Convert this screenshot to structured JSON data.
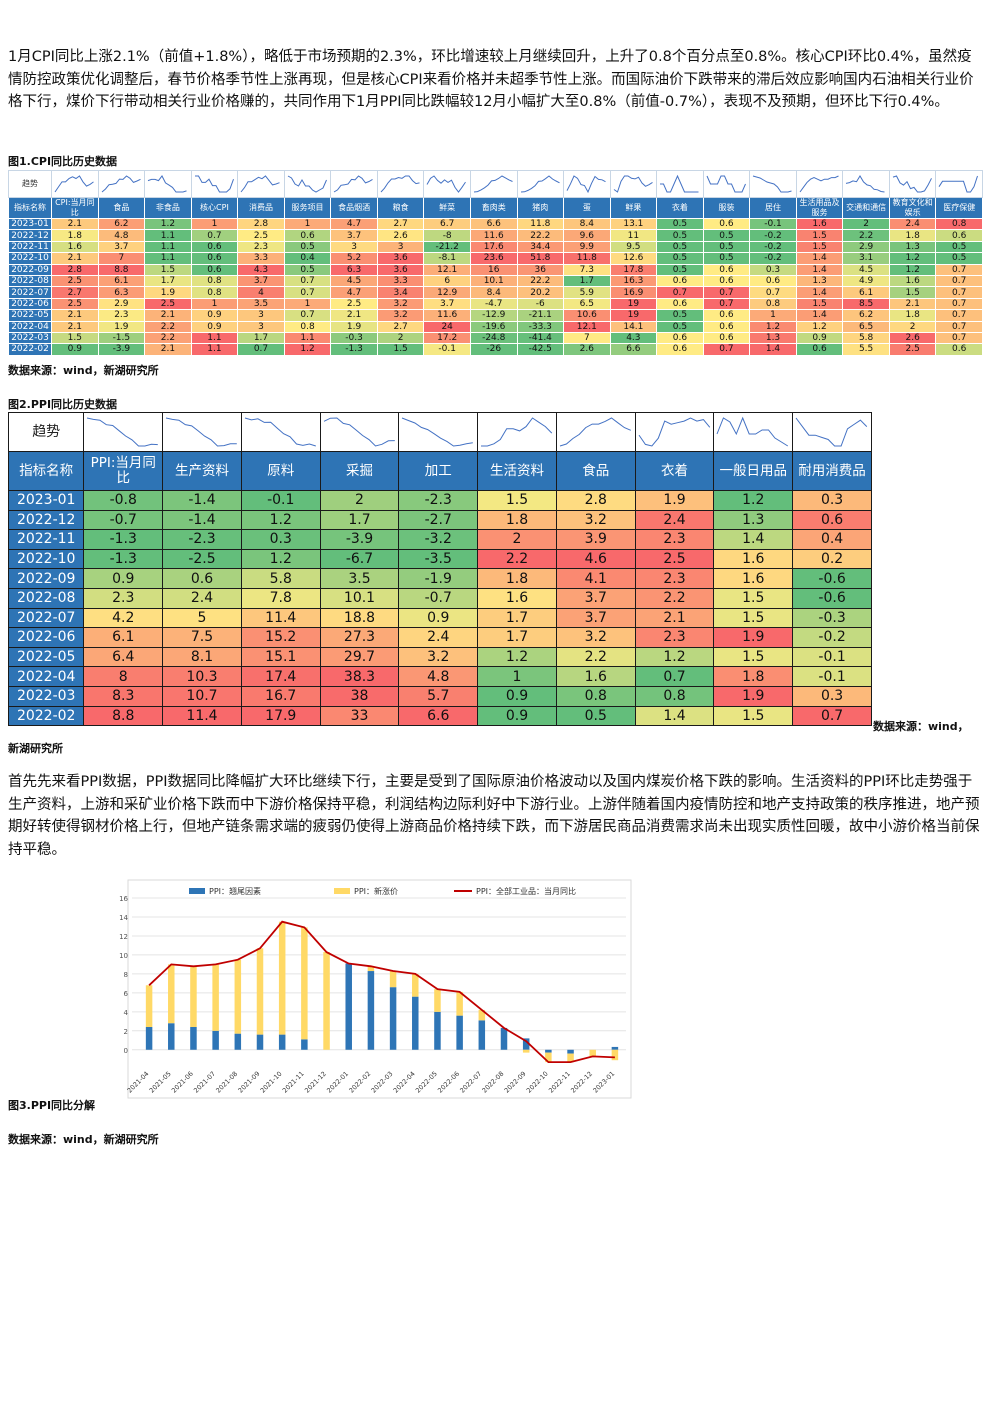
{
  "paragraphs": {
    "p1": "1月CPI同比上涨2.1%（前值+1.8%），略低于市场预期的2.3%，环比增速较上月继续回升，上升了0.8个百分点至0.8%。核心CPI环比0.4%，虽然疫情防控政策优化调整后，春节价格季节性上涨再现，但是核心CPI来看价格并未超季节性上涨。而国际油价下跌带来的滞后效应影响国内石油相关行业价格下行，煤价下行带动相关行业价格赚的，共同作用下1月PPI同比跌幅较12月小幅扩大至0.8%（前值-0.7%），表现不及预期，但环比下行0.4%。",
    "p2": "首先先来看PPI数据，PPI数据同比降幅扩大环比继续下行，主要是受到了国际原油价格波动以及国内煤炭价格下跌的影响。生活资料的PPI环比走势强于生产资料，上游和采矿业价格下跌而中下游价格保持平稳，利润结构边际利好中下游行业。上游伴随着国内疫情防控和地产支持政策的秩序推进，地产预期好转使得钢材价格上行，但地产链条需求端的疲弱仍使得上游商品价格持续下跌，而下游居民商品消费需求尚未出现实质性回暖，故中小游价格当前保持平稳。"
  },
  "captions": {
    "fig1": "图1.CPI同比历史数据",
    "fig2": "图2.PPI同比历史数据",
    "fig3": "图3.PPI同比分解",
    "source1": "数据来源：wind，新湖研究所",
    "source2a": "数据来源：wind，",
    "source2b": "新湖研究所",
    "source3": "数据来源：wind，新湖研究所"
  },
  "cpi_table": {
    "trend_label": "趋势",
    "corner": "指标名称",
    "headers": [
      "CPI:当月同比",
      "食品",
      "非食品",
      "核心CPI",
      "消费品",
      "服务项目",
      "食品烟酒",
      "粮食",
      "鲜菜",
      "畜肉类",
      "猪肉",
      "蛋",
      "鲜果",
      "衣着",
      "服装",
      "居住",
      "生活用品及服务",
      "交通和通信",
      "教育文化和娱乐",
      "医疗保健"
    ],
    "dates": [
      "2023-01",
      "2022-12",
      "2022-11",
      "2022-10",
      "2022-09",
      "2022-08",
      "2022-07",
      "2022-06",
      "2022-05",
      "2022-04",
      "2022-03",
      "2022-02"
    ],
    "rows": [
      [
        "2.1",
        "6.2",
        "1.2",
        "1",
        "2.8",
        "1",
        "4.7",
        "2.7",
        "6.7",
        "6.6",
        "11.8",
        "8.4",
        "13.1",
        "0.5",
        "0.6",
        "-0.1",
        "1.6",
        "2",
        "2.4",
        "0.8"
      ],
      [
        "1.8",
        "4.8",
        "1.1",
        "0.7",
        "2.5",
        "0.6",
        "3.7",
        "2.6",
        "-8",
        "11.6",
        "22.2",
        "9.6",
        "11",
        "0.5",
        "0.5",
        "-0.2",
        "1.5",
        "2.2",
        "1.8",
        "0.6"
      ],
      [
        "1.6",
        "3.7",
        "1.1",
        "0.6",
        "2.3",
        "0.5",
        "3",
        "3",
        "-21.2",
        "17.6",
        "34.4",
        "9.9",
        "9.5",
        "0.5",
        "0.5",
        "-0.2",
        "1.5",
        "2.9",
        "1.3",
        "0.5"
      ],
      [
        "2.1",
        "7",
        "1.1",
        "0.6",
        "3.3",
        "0.4",
        "5.2",
        "3.6",
        "-8.1",
        "23.6",
        "51.8",
        "11.8",
        "12.6",
        "0.5",
        "0.5",
        "-0.2",
        "1.4",
        "3.1",
        "1.2",
        "0.5"
      ],
      [
        "2.8",
        "8.8",
        "1.5",
        "0.6",
        "4.3",
        "0.5",
        "6.3",
        "3.6",
        "12.1",
        "16",
        "36",
        "7.3",
        "17.8",
        "0.5",
        "0.6",
        "0.3",
        "1.4",
        "4.5",
        "1.2",
        "0.7"
      ],
      [
        "2.5",
        "6.1",
        "1.7",
        "0.8",
        "3.7",
        "0.7",
        "4.5",
        "3.3",
        "6",
        "10.1",
        "22.2",
        "1.7",
        "16.3",
        "0.6",
        "0.6",
        "0.6",
        "1.3",
        "4.9",
        "1.6",
        "0.7"
      ],
      [
        "2.7",
        "6.3",
        "1.9",
        "0.8",
        "4",
        "0.7",
        "4.7",
        "3.4",
        "12.9",
        "8.4",
        "20.2",
        "5.9",
        "16.9",
        "0.7",
        "0.7",
        "0.7",
        "1.4",
        "6.1",
        "1.5",
        "0.7"
      ],
      [
        "2.5",
        "2.9",
        "2.5",
        "1",
        "3.5",
        "1",
        "2.5",
        "3.2",
        "3.7",
        "-4.7",
        "-6",
        "6.5",
        "19",
        "0.6",
        "0.7",
        "0.8",
        "1.5",
        "8.5",
        "2.1",
        "0.7"
      ],
      [
        "2.1",
        "2.3",
        "2.1",
        "0.9",
        "3",
        "0.7",
        "2.1",
        "3.2",
        "11.6",
        "-12.9",
        "-21.1",
        "10.6",
        "19",
        "0.5",
        "0.6",
        "1",
        "1.4",
        "6.2",
        "1.8",
        "0.7"
      ],
      [
        "2.1",
        "1.9",
        "2.2",
        "0.9",
        "3",
        "0.8",
        "1.9",
        "2.7",
        "24",
        "-19.6",
        "-33.3",
        "12.1",
        "14.1",
        "0.5",
        "0.6",
        "1.2",
        "1.2",
        "6.5",
        "2",
        "0.7"
      ],
      [
        "1.5",
        "-1.5",
        "2.2",
        "1.1",
        "1.7",
        "1.1",
        "-0.3",
        "2",
        "17.2",
        "-24.8",
        "-41.4",
        "7",
        "4.3",
        "0.6",
        "0.6",
        "1.3",
        "0.9",
        "5.8",
        "2.6",
        "0.7"
      ],
      [
        "0.9",
        "-3.9",
        "2.1",
        "1.1",
        "0.7",
        "1.2",
        "-1.3",
        "1.5",
        "-0.1",
        "-26",
        "-42.5",
        "2.6",
        "6.6",
        "0.6",
        "0.7",
        "1.4",
        "0.6",
        "5.5",
        "2.5",
        "0.6"
      ]
    ]
  },
  "ppi_table": {
    "trend_label": "趋势",
    "corner": "指标名称",
    "headers": [
      "PPI:当月同比",
      "生产资料",
      "原料",
      "采掘",
      "加工",
      "生活资料",
      "食品",
      "衣着",
      "一般日用品",
      "耐用消费品"
    ],
    "dates": [
      "2023-01",
      "2022-12",
      "2022-11",
      "2022-10",
      "2022-09",
      "2022-08",
      "2022-07",
      "2022-06",
      "2022-05",
      "2022-04",
      "2022-03",
      "2022-02"
    ],
    "rows": [
      [
        "-0.8",
        "-1.4",
        "-0.1",
        "2",
        "-2.3",
        "1.5",
        "2.8",
        "1.9",
        "1.2",
        "0.3"
      ],
      [
        "-0.7",
        "-1.4",
        "1.2",
        "1.7",
        "-2.7",
        "1.8",
        "3.2",
        "2.4",
        "1.3",
        "0.6"
      ],
      [
        "-1.3",
        "-2.3",
        "0.3",
        "-3.9",
        "-3.2",
        "2",
        "3.9",
        "2.3",
        "1.4",
        "0.4"
      ],
      [
        "-1.3",
        "-2.5",
        "1.2",
        "-6.7",
        "-3.5",
        "2.2",
        "4.6",
        "2.5",
        "1.6",
        "0.2"
      ],
      [
        "0.9",
        "0.6",
        "5.8",
        "3.5",
        "-1.9",
        "1.8",
        "4.1",
        "2.3",
        "1.6",
        "-0.6"
      ],
      [
        "2.3",
        "2.4",
        "7.8",
        "10.1",
        "-0.7",
        "1.6",
        "3.7",
        "2.2",
        "1.5",
        "-0.6"
      ],
      [
        "4.2",
        "5",
        "11.4",
        "18.8",
        "0.9",
        "1.7",
        "3.7",
        "2.1",
        "1.5",
        "-0.3"
      ],
      [
        "6.1",
        "7.5",
        "15.2",
        "27.3",
        "2.4",
        "1.7",
        "3.2",
        "2.3",
        "1.9",
        "-0.2"
      ],
      [
        "6.4",
        "8.1",
        "15.1",
        "29.7",
        "3.2",
        "1.2",
        "2.2",
        "1.2",
        "1.5",
        "-0.1"
      ],
      [
        "8",
        "10.3",
        "17.4",
        "38.3",
        "4.8",
        "1",
        "1.6",
        "0.7",
        "1.8",
        "-0.1"
      ],
      [
        "8.3",
        "10.7",
        "16.7",
        "38",
        "5.7",
        "0.9",
        "0.8",
        "0.8",
        "1.9",
        "0.3"
      ],
      [
        "8.8",
        "11.4",
        "17.9",
        "33",
        "6.6",
        "0.9",
        "0.5",
        "1.4",
        "1.5",
        "0.7"
      ]
    ]
  },
  "chart_data": {
    "type": "bar",
    "title": "",
    "legend_position": "top",
    "categories": [
      "2021-04",
      "2021-05",
      "2021-06",
      "2021-07",
      "2021-08",
      "2021-09",
      "2021-10",
      "2021-11",
      "2021-12",
      "2022-01",
      "2022-02",
      "2022-03",
      "2022-04",
      "2022-05",
      "2022-06",
      "2022-07",
      "2022-08",
      "2022-09",
      "2022-10",
      "2022-11",
      "2022-12",
      "2023-01"
    ],
    "tick_labels": [
      "2021-04",
      "2021-05",
      "2021-06",
      "2021-07",
      "2021-08",
      "2021-09",
      "2021-10",
      "2021-11",
      "2021-12",
      "2022-01",
      "2022-02",
      "2022-03",
      "2022-04",
      "2022-05",
      "2022-06",
      "2022-07",
      "2022-08",
      "2022-09",
      "2022-10",
      "2022-11",
      "2022-12",
      "2023-01"
    ],
    "ylim": [
      -1.5,
      16
    ],
    "yticks": [
      0,
      2,
      4,
      6,
      8,
      10,
      12,
      14,
      16
    ],
    "series": [
      {
        "name": "PPI：翘尾因素",
        "kind": "bar",
        "color": "#2e75b6",
        "values": [
          2.4,
          2.8,
          2.4,
          2.0,
          1.7,
          1.6,
          1.6,
          1.1,
          0.0,
          9.1,
          8.3,
          6.6,
          5.6,
          4.0,
          3.6,
          3.1,
          2.3,
          1.2,
          -0.3,
          -0.4,
          0.0,
          0.3
        ]
      },
      {
        "name": "PPI：新涨价",
        "kind": "bar",
        "color": "#ffd966",
        "values": [
          4.4,
          6.2,
          6.4,
          7.0,
          7.8,
          9.1,
          11.9,
          11.8,
          10.3,
          0.0,
          0.5,
          1.7,
          2.4,
          2.4,
          2.5,
          1.1,
          0.0,
          -0.3,
          -1.0,
          -0.9,
          -0.7,
          -1.1
        ]
      },
      {
        "name": "PPI：全部工业品：当月同比",
        "kind": "line",
        "color": "#c00000",
        "values": [
          6.8,
          9.0,
          8.8,
          9.0,
          9.5,
          10.7,
          13.5,
          12.9,
          10.3,
          9.1,
          8.8,
          8.3,
          8.0,
          6.4,
          6.1,
          4.2,
          2.3,
          0.9,
          -1.3,
          -1.3,
          -0.7,
          -0.8
        ]
      }
    ]
  },
  "colors": {
    "header_blue": "#2e74b5",
    "high": "#f8696b",
    "mid": "#ffeb84",
    "low": "#63be7b"
  }
}
